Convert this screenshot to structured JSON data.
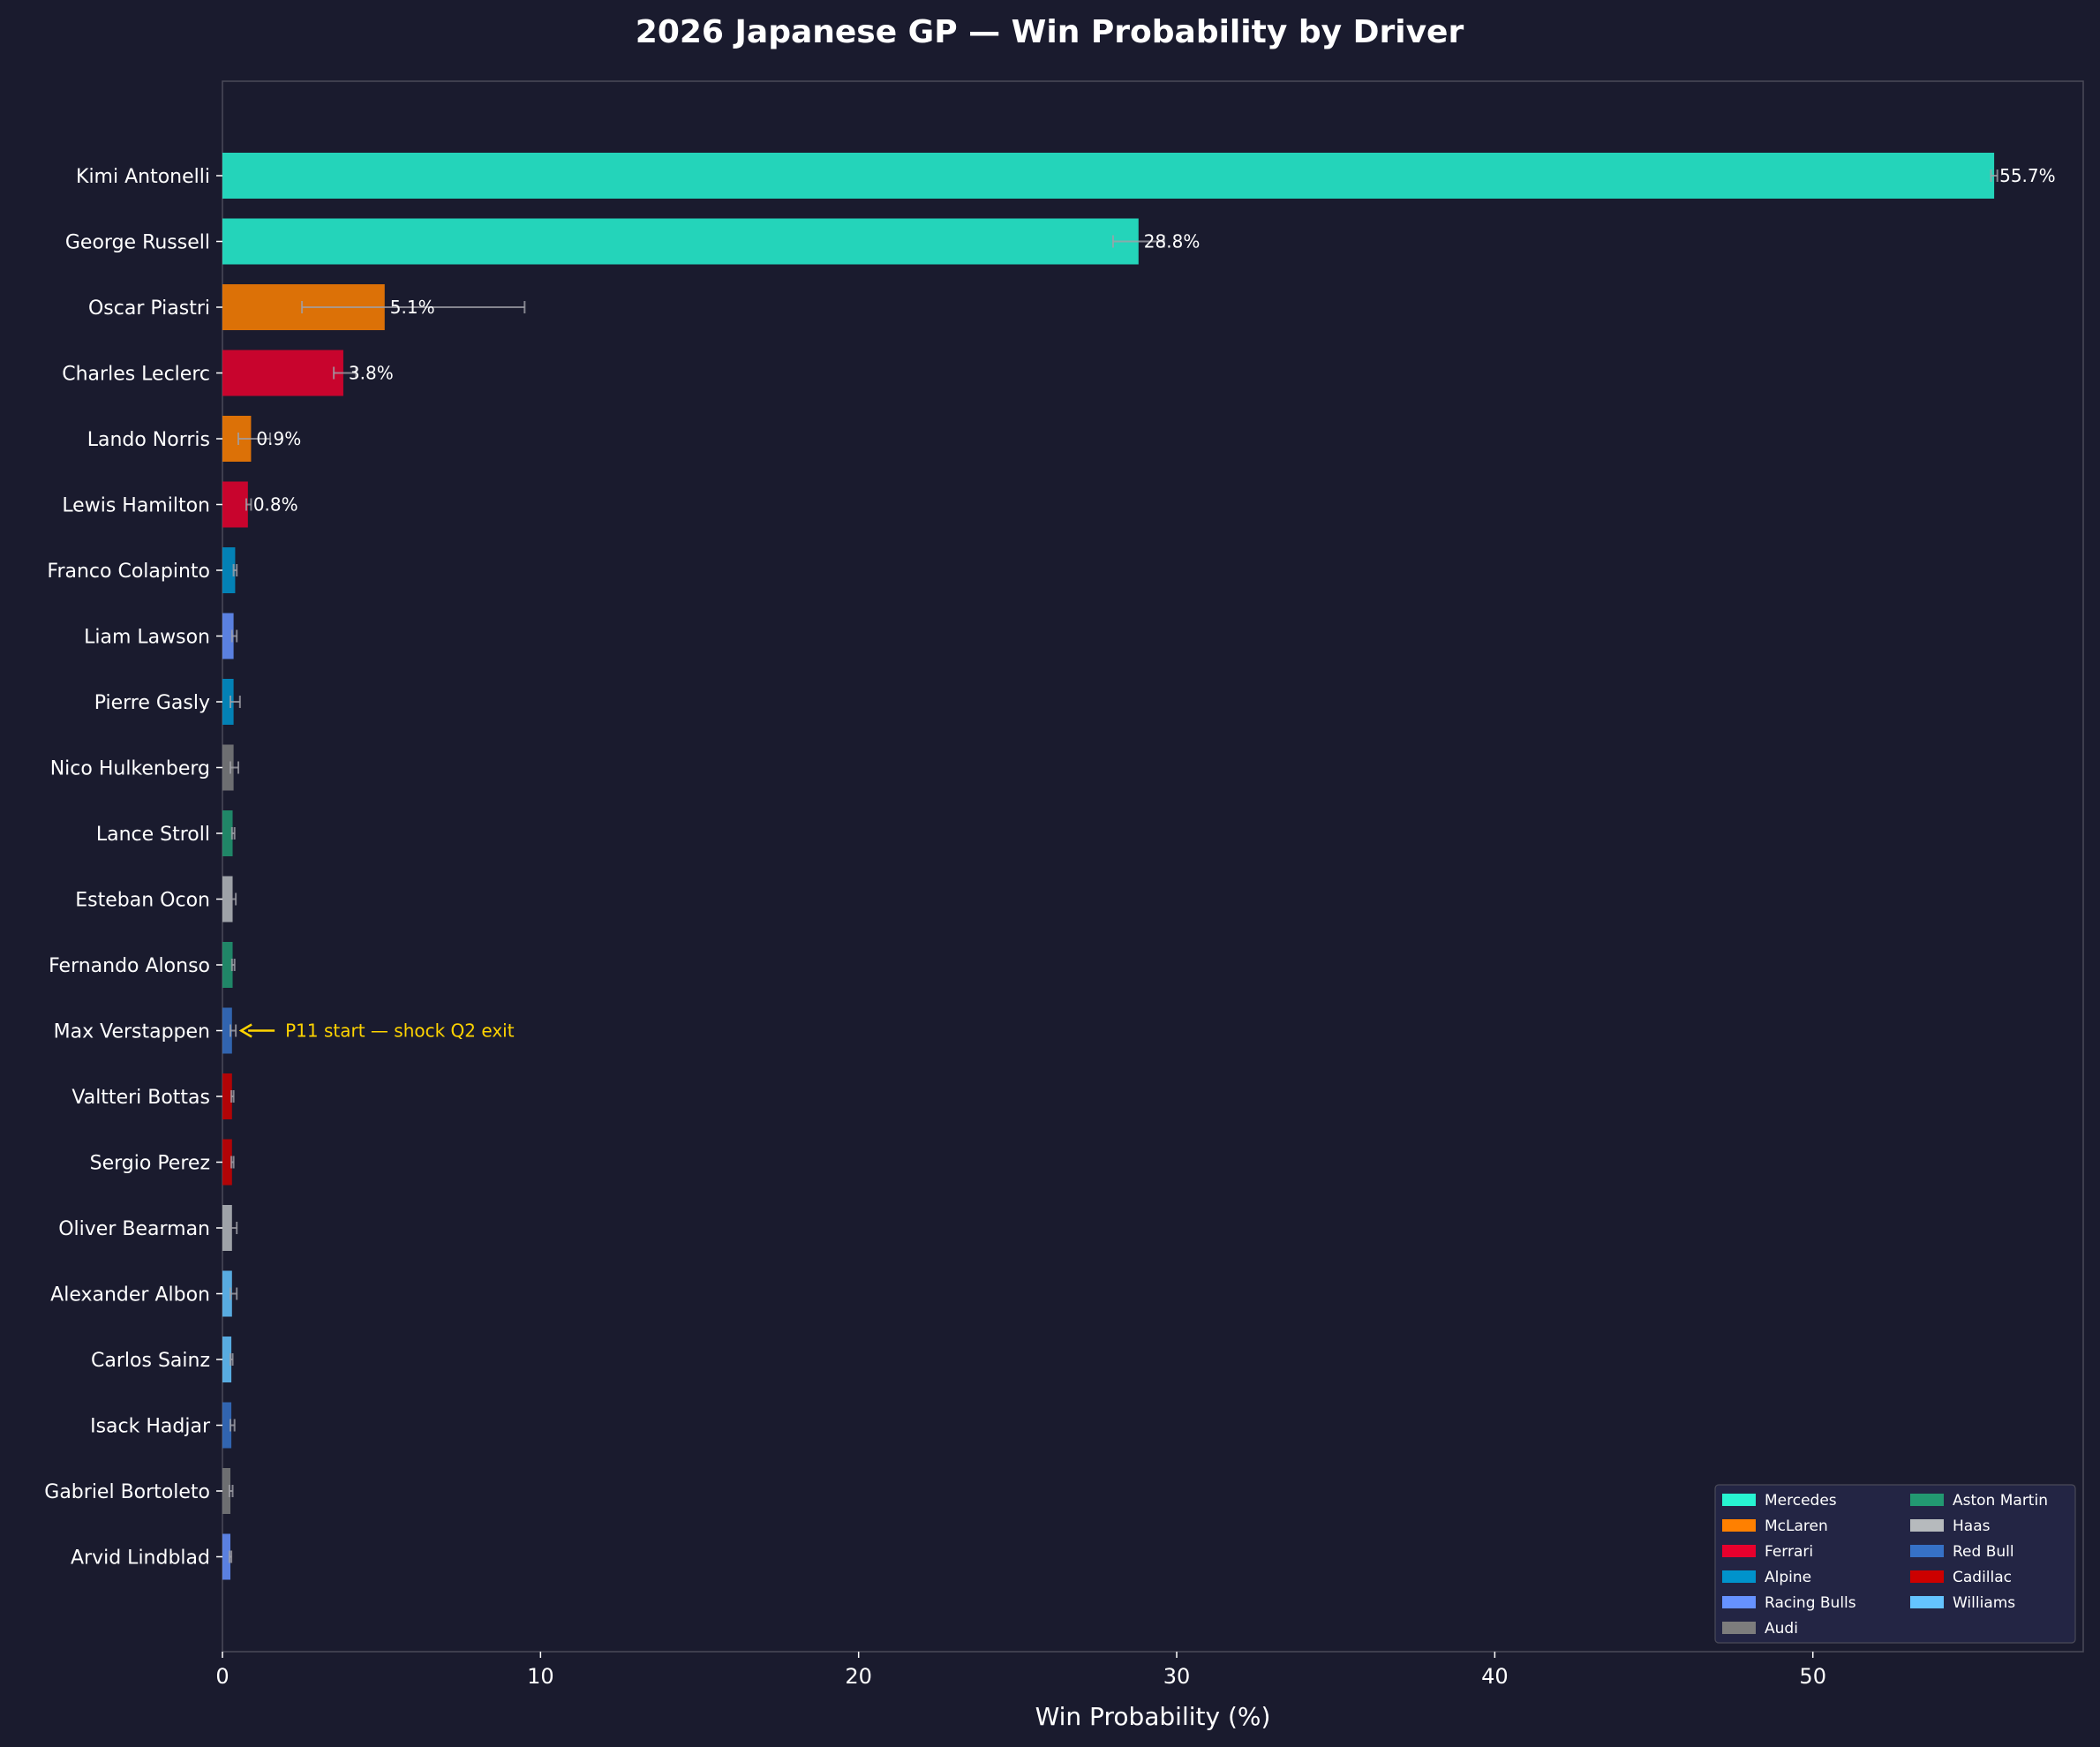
{
  "chart_data": {
    "type": "bar",
    "orientation": "horizontal",
    "title": "2026 Japanese GP — Win Probability by Driver",
    "xlabel": "Win Probability (%)",
    "ylabel": "",
    "xlim": [
      0,
      58.5
    ],
    "xticks": [
      0,
      10,
      20,
      30,
      40,
      50
    ],
    "grid": false,
    "legend_position": "bottom-right",
    "teams": [
      {
        "name": "Mercedes",
        "color": "#27f4d2"
      },
      {
        "name": "McLaren",
        "color": "#ff8000"
      },
      {
        "name": "Ferrari",
        "color": "#e8002d"
      },
      {
        "name": "Alpine",
        "color": "#0093cc"
      },
      {
        "name": "Racing Bulls",
        "color": "#6692ff"
      },
      {
        "name": "Audi",
        "color": "#7d7d7d"
      },
      {
        "name": "Aston Martin",
        "color": "#229971"
      },
      {
        "name": "Haas",
        "color": "#b6babd"
      },
      {
        "name": "Red Bull",
        "color": "#3671c6"
      },
      {
        "name": "Cadillac",
        "color": "#cc0000"
      },
      {
        "name": "Williams",
        "color": "#64c4ff"
      }
    ],
    "drivers": [
      {
        "name": "Kimi Antonelli",
        "team": "Mercedes",
        "value": 55.7,
        "err_low": 55.6,
        "err_high": 55.8,
        "label": "55.7%"
      },
      {
        "name": "George Russell",
        "team": "Mercedes",
        "value": 28.8,
        "err_low": 28.0,
        "err_high": 29.6,
        "label": "28.8%"
      },
      {
        "name": "Oscar Piastri",
        "team": "McLaren",
        "value": 5.1,
        "err_low": 2.5,
        "err_high": 9.5,
        "label": "5.1%"
      },
      {
        "name": "Charles Leclerc",
        "team": "Ferrari",
        "value": 3.8,
        "err_low": 3.5,
        "err_high": 4.2,
        "label": "3.8%"
      },
      {
        "name": "Lando Norris",
        "team": "McLaren",
        "value": 0.9,
        "err_low": 0.5,
        "err_high": 1.5,
        "label": "0.9%"
      },
      {
        "name": "Lewis Hamilton",
        "team": "Ferrari",
        "value": 0.8,
        "err_low": 0.75,
        "err_high": 0.9,
        "label": "0.8%"
      },
      {
        "name": "Franco Colapinto",
        "team": "Alpine",
        "value": 0.4,
        "err_low": 0.35,
        "err_high": 0.45,
        "label": ""
      },
      {
        "name": "Liam Lawson",
        "team": "Racing Bulls",
        "value": 0.35,
        "err_low": 0.3,
        "err_high": 0.45,
        "label": ""
      },
      {
        "name": "Pierre Gasly",
        "team": "Alpine",
        "value": 0.35,
        "err_low": 0.25,
        "err_high": 0.55,
        "label": ""
      },
      {
        "name": "Nico Hulkenberg",
        "team": "Audi",
        "value": 0.35,
        "err_low": 0.25,
        "err_high": 0.5,
        "label": ""
      },
      {
        "name": "Lance Stroll",
        "team": "Aston Martin",
        "value": 0.32,
        "err_low": 0.3,
        "err_high": 0.38,
        "label": ""
      },
      {
        "name": "Esteban Ocon",
        "team": "Haas",
        "value": 0.32,
        "err_low": 0.28,
        "err_high": 0.42,
        "label": ""
      },
      {
        "name": "Fernando Alonso",
        "team": "Aston Martin",
        "value": 0.32,
        "err_low": 0.3,
        "err_high": 0.38,
        "label": ""
      },
      {
        "name": "Max Verstappen",
        "team": "Red Bull",
        "value": 0.3,
        "err_low": 0.25,
        "err_high": 0.42,
        "label": ""
      },
      {
        "name": "Valtteri Bottas",
        "team": "Cadillac",
        "value": 0.3,
        "err_low": 0.28,
        "err_high": 0.35,
        "label": ""
      },
      {
        "name": "Sergio Perez",
        "team": "Cadillac",
        "value": 0.3,
        "err_low": 0.28,
        "err_high": 0.35,
        "label": ""
      },
      {
        "name": "Oliver Bearman",
        "team": "Haas",
        "value": 0.3,
        "err_low": 0.25,
        "err_high": 0.45,
        "label": ""
      },
      {
        "name": "Alexander Albon",
        "team": "Williams",
        "value": 0.3,
        "err_low": 0.25,
        "err_high": 0.45,
        "label": ""
      },
      {
        "name": "Carlos Sainz",
        "team": "Williams",
        "value": 0.28,
        "err_low": 0.25,
        "err_high": 0.32,
        "label": ""
      },
      {
        "name": "Isack Hadjar",
        "team": "Red Bull",
        "value": 0.28,
        "err_low": 0.25,
        "err_high": 0.38,
        "label": ""
      },
      {
        "name": "Gabriel Bortoleto",
        "team": "Audi",
        "value": 0.25,
        "err_low": 0.22,
        "err_high": 0.32,
        "label": ""
      },
      {
        "name": "Arvid Lindblad",
        "team": "Racing Bulls",
        "value": 0.25,
        "err_low": 0.22,
        "err_high": 0.28,
        "label": ""
      }
    ],
    "annotation": {
      "text": "P11 start — shock Q2 exit",
      "driver": "Max Verstappen",
      "color": "#ffd400"
    }
  }
}
